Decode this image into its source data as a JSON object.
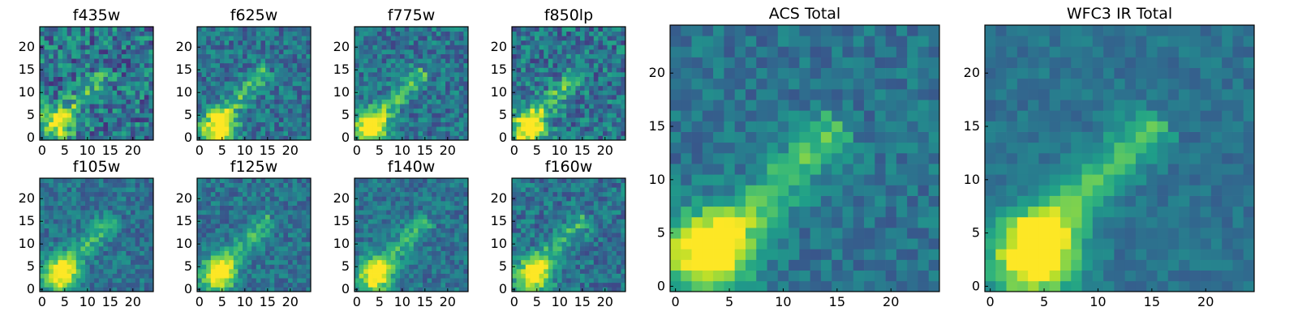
{
  "figure": {
    "colormap": "viridis",
    "colormap_stops": [
      "#440154",
      "#482878",
      "#3e4a89",
      "#31688e",
      "#26828e",
      "#1f9e89",
      "#35b779",
      "#6ece58",
      "#b5de2b",
      "#fde725"
    ]
  },
  "chart_data": [
    {
      "type": "heatmap",
      "title": "f435w",
      "xlim": [
        0,
        24
      ],
      "ylim": [
        0,
        24
      ],
      "xticks": [
        "0",
        "5",
        "10",
        "15",
        "20"
      ],
      "yticks": [
        "0",
        "5",
        "10",
        "15",
        "20"
      ],
      "grid": false,
      "source_peak": [
        3,
        3
      ],
      "source_brightness": 0.6,
      "noise_level": 0.42,
      "seed": 11
    },
    {
      "type": "heatmap",
      "title": "f625w",
      "xlim": [
        0,
        24
      ],
      "ylim": [
        0,
        24
      ],
      "xticks": [
        "0",
        "5",
        "10",
        "15",
        "20"
      ],
      "yticks": [
        "0",
        "5",
        "10",
        "15",
        "20"
      ],
      "grid": false,
      "source_peak": [
        4,
        2
      ],
      "source_brightness": 0.75,
      "noise_level": 0.3,
      "seed": 23
    },
    {
      "type": "heatmap",
      "title": "f775w",
      "xlim": [
        0,
        24
      ],
      "ylim": [
        0,
        24
      ],
      "xticks": [
        "0",
        "5",
        "10",
        "15",
        "20"
      ],
      "yticks": [
        "0",
        "5",
        "10",
        "15",
        "20"
      ],
      "grid": false,
      "source_peak": [
        3,
        2
      ],
      "source_brightness": 0.75,
      "noise_level": 0.3,
      "seed": 37
    },
    {
      "type": "heatmap",
      "title": "f850lp",
      "xlim": [
        0,
        24
      ],
      "ylim": [
        0,
        24
      ],
      "xticks": [
        "0",
        "5",
        "10",
        "15",
        "20"
      ],
      "yticks": [
        "0",
        "5",
        "10",
        "15",
        "20"
      ],
      "grid": false,
      "source_peak": [
        3,
        2
      ],
      "source_brightness": 0.75,
      "noise_level": 0.36,
      "seed": 41
    },
    {
      "type": "heatmap",
      "title": "f105w",
      "xlim": [
        0,
        24
      ],
      "ylim": [
        0,
        24
      ],
      "xticks": [
        "0",
        "5",
        "10",
        "15",
        "20"
      ],
      "yticks": [
        "0",
        "5",
        "10",
        "15",
        "20"
      ],
      "grid": false,
      "source_peak": [
        4,
        3
      ],
      "source_brightness": 0.7,
      "noise_level": 0.24,
      "seed": 53
    },
    {
      "type": "heatmap",
      "title": "f125w",
      "xlim": [
        0,
        24
      ],
      "ylim": [
        0,
        24
      ],
      "xticks": [
        "0",
        "5",
        "10",
        "15",
        "20"
      ],
      "yticks": [
        "0",
        "5",
        "10",
        "15",
        "20"
      ],
      "grid": false,
      "source_peak": [
        4,
        3
      ],
      "source_brightness": 0.7,
      "noise_level": 0.24,
      "seed": 67
    },
    {
      "type": "heatmap",
      "title": "f140w",
      "xlim": [
        0,
        24
      ],
      "ylim": [
        0,
        24
      ],
      "xticks": [
        "0",
        "5",
        "10",
        "15",
        "20"
      ],
      "yticks": [
        "0",
        "5",
        "10",
        "15",
        "20"
      ],
      "grid": false,
      "source_peak": [
        4,
        3
      ],
      "source_brightness": 0.7,
      "noise_level": 0.24,
      "seed": 71
    },
    {
      "type": "heatmap",
      "title": "f160w",
      "xlim": [
        0,
        24
      ],
      "ylim": [
        0,
        24
      ],
      "xticks": [
        "0",
        "5",
        "10",
        "15",
        "20"
      ],
      "yticks": [
        "0",
        "5",
        "10",
        "15",
        "20"
      ],
      "grid": false,
      "source_peak": [
        4,
        3
      ],
      "source_brightness": 0.7,
      "noise_level": 0.28,
      "seed": 83
    },
    {
      "type": "heatmap",
      "title": "ACS Total",
      "xlim": [
        0,
        24
      ],
      "ylim": [
        0,
        24
      ],
      "xticks": [
        "0",
        "5",
        "10",
        "15",
        "20"
      ],
      "yticks": [
        "0",
        "5",
        "10",
        "15",
        "20"
      ],
      "grid": false,
      "source_peak": [
        3,
        3
      ],
      "source_brightness": 0.85,
      "noise_level": 0.2,
      "seed": 97
    },
    {
      "type": "heatmap",
      "title": "WFC3 IR Total",
      "xlim": [
        0,
        24
      ],
      "ylim": [
        0,
        24
      ],
      "xticks": [
        "0",
        "5",
        "10",
        "15",
        "20"
      ],
      "yticks": [
        "0",
        "5",
        "10",
        "15",
        "20"
      ],
      "grid": false,
      "source_peak": [
        4,
        3
      ],
      "source_brightness": 0.85,
      "noise_level": 0.14,
      "seed": 101
    }
  ]
}
